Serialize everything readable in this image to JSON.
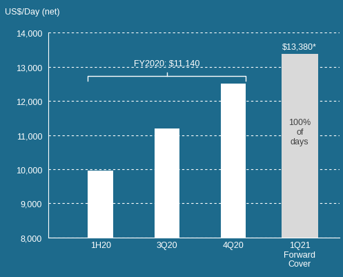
{
  "chart_data": {
    "type": "bar",
    "y_label": "US$/Day (net)",
    "categories": [
      "1H20",
      "3Q20",
      "4Q20",
      "1Q21 Forward Cover"
    ],
    "values": [
      9950,
      11200,
      12500,
      13380
    ],
    "colors": [
      "#ffffff",
      "#ffffff",
      "#ffffff",
      "#d9d9d9"
    ],
    "ylim": [
      8000,
      14000
    ],
    "yticks": [
      {
        "value": 8000,
        "label": "8,000"
      },
      {
        "value": 9000,
        "label": "9,000"
      },
      {
        "value": 10000,
        "label": "10,000"
      },
      {
        "value": 11000,
        "label": "11,000"
      },
      {
        "value": 12000,
        "label": "12,000"
      },
      {
        "value": 13000,
        "label": "13,000"
      },
      {
        "value": 14000,
        "label": "14,000"
      }
    ],
    "grid": true,
    "annotations": [
      "FY2020: $11,140",
      "$13,380*",
      "100% of days"
    ]
  }
}
